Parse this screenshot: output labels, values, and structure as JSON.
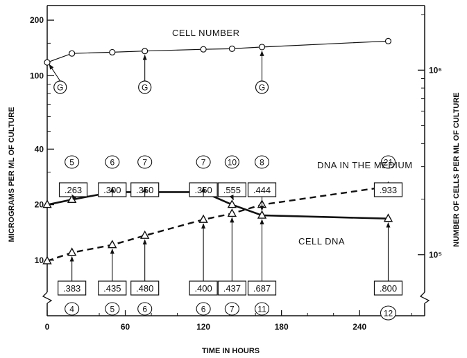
{
  "chart_data": {
    "type": "line",
    "xlabel": "TIME IN HOURS",
    "ylabel_left": "MICROGRAMS PER ML OF CULTURE",
    "ylabel_right": "NUMBER OF CELLS PER ML OF CULTURE",
    "x_ticks": [
      "0",
      "60",
      "120",
      "180",
      "240"
    ],
    "y_left_ticks": [
      "10",
      "20",
      "40",
      "100",
      "200"
    ],
    "y_right_ticks": [
      "10⁵",
      "10⁶"
    ],
    "xlim": [
      0,
      290
    ],
    "ylim_left": [
      5,
      240
    ],
    "y_scale": "log",
    "series": [
      {
        "name": "CELL NUMBER",
        "style": "solid line, open circles",
        "x": [
          0,
          19,
          50,
          75,
          120,
          142,
          165,
          262
        ],
        "y": [
          118,
          132,
          134,
          136,
          139,
          140,
          143,
          154
        ]
      },
      {
        "name": "CELL DNA",
        "style": "solid thick line, open triangles",
        "x": [
          0,
          19,
          50,
          75,
          120,
          142,
          165,
          262
        ],
        "y": [
          20,
          21.3,
          23.4,
          23.4,
          23.4,
          20,
          17.5,
          16.8
        ]
      },
      {
        "name": "DNA IN THE MEDIUM",
        "style": "dashed thick line, open triangles",
        "x": [
          0,
          19,
          50,
          75,
          120,
          142,
          165,
          262
        ],
        "y": [
          9.9,
          11,
          12.1,
          13.6,
          16.6,
          17.9,
          20,
          25.1
        ]
      }
    ],
    "g_markers": {
      "label": "G",
      "x": [
        10,
        75,
        165
      ]
    },
    "top_boxes": [
      {
        "x": 20,
        "text": ".263"
      },
      {
        "x": 50,
        "text": ".300"
      },
      {
        "x": 75,
        "text": ".350"
      },
      {
        "x": 120,
        "text": ".350"
      },
      {
        "x": 142,
        "text": ".555"
      },
      {
        "x": 165,
        "text": ".444"
      },
      {
        "x": 262,
        "text": ".933"
      }
    ],
    "top_circles": [
      {
        "x": 19,
        "text": "5"
      },
      {
        "x": 50,
        "text": "6"
      },
      {
        "x": 75,
        "text": "7"
      },
      {
        "x": 120,
        "text": "7"
      },
      {
        "x": 142,
        "text": "10"
      },
      {
        "x": 165,
        "text": "8"
      },
      {
        "x": 262,
        "text": "21"
      }
    ],
    "bottom_boxes": [
      {
        "x": 19,
        "text": ".383"
      },
      {
        "x": 50,
        "text": ".435"
      },
      {
        "x": 75,
        "text": ".480"
      },
      {
        "x": 120,
        "text": ".400"
      },
      {
        "x": 142,
        "text": ".437"
      },
      {
        "x": 165,
        "text": ".687"
      },
      {
        "x": 262,
        "text": ".800"
      }
    ],
    "bottom_circles": [
      {
        "x": 19,
        "text": "4"
      },
      {
        "x": 50,
        "text": "5"
      },
      {
        "x": 75,
        "text": "6"
      },
      {
        "x": 120,
        "text": "6"
      },
      {
        "x": 142,
        "text": "7"
      },
      {
        "x": 165,
        "text": "11"
      },
      {
        "x": 262,
        "text": "12"
      }
    ]
  }
}
